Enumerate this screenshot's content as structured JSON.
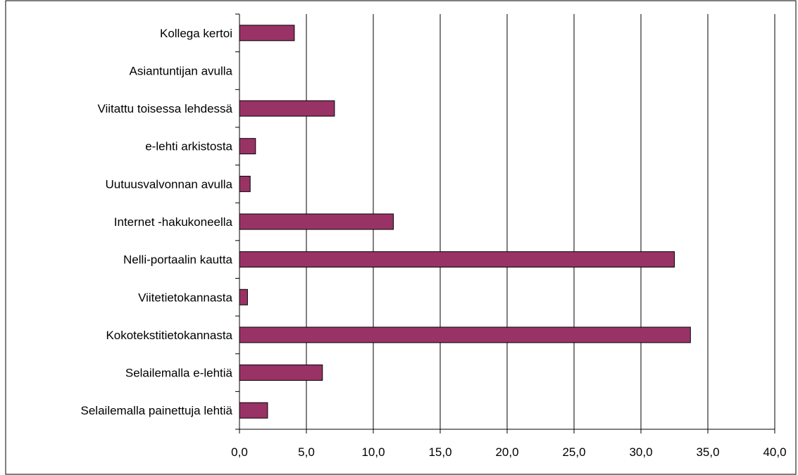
{
  "chart_data": {
    "type": "bar",
    "orientation": "horizontal",
    "categories": [
      "Kollega kertoi",
      "Asiantuntijan avulla",
      "Viitattu toisessa lehdessä",
      "e-lehti arkistosta",
      "Uutuusvalvonnan avulla",
      "Internet -hakukoneella",
      "Nelli-portaalin kautta",
      "Viitetietokannasta",
      "Kokotekstitietokannasta",
      "Selailemalla e-lehtiä",
      "Selailemalla painettuja lehtiä"
    ],
    "values": [
      4.1,
      0,
      7.1,
      1.2,
      0.8,
      11.5,
      32.5,
      0.6,
      33.7,
      6.2,
      2.1
    ],
    "xlim": [
      0,
      40
    ],
    "xticks": [
      "0,0",
      "5,0",
      "10,0",
      "15,0",
      "20,0",
      "25,0",
      "30,0",
      "35,0",
      "40,0"
    ],
    "grid": "vertical",
    "bar_color": "#993366",
    "title": "",
    "xlabel": "",
    "ylabel": ""
  }
}
